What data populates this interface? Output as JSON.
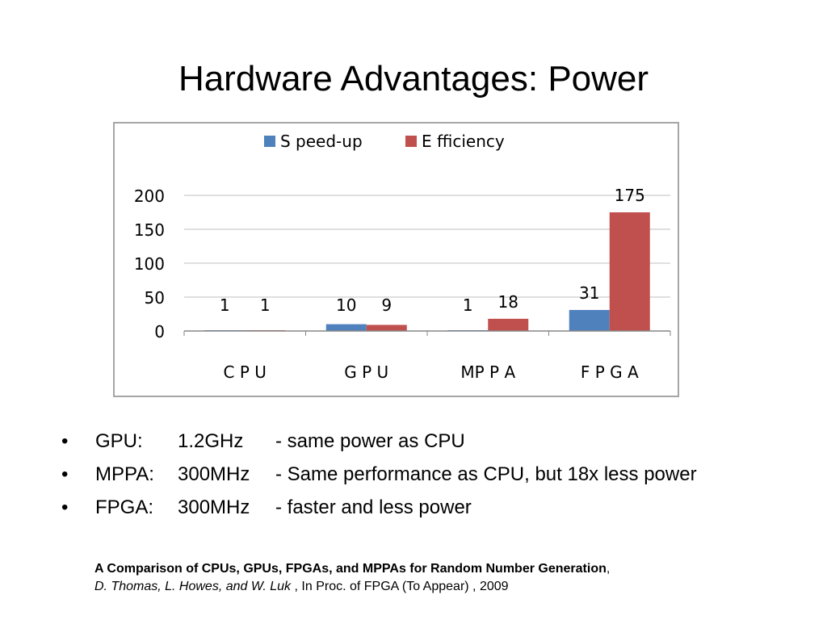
{
  "slide": {
    "title": "Hardware Advantages: Power"
  },
  "chart_data": {
    "type": "bar",
    "categories": [
      "C P U",
      "G P U",
      "MP P A",
      "F P G A"
    ],
    "series": [
      {
        "name": "S peed-up",
        "color": "#4f81bd",
        "values": [
          1,
          10,
          1,
          31
        ]
      },
      {
        "name": "E fficiency",
        "color": "#c0504d",
        "values": [
          1,
          9,
          18,
          175
        ]
      }
    ],
    "data_labels": [
      [
        "1",
        "10",
        "1",
        "31"
      ],
      [
        "1",
        "9",
        "18",
        "175"
      ]
    ],
    "yticks": [
      "0",
      "50",
      "100",
      "150",
      "200"
    ],
    "ylim": [
      0,
      200
    ],
    "grid": true,
    "legend": "top"
  },
  "bullets": [
    {
      "label": "GPU:",
      "speed": "1.2GHz",
      "note": "- same power as CPU"
    },
    {
      "label": "MPPA:",
      "speed": "300MHz",
      "note": "- Same performance as CPU, but 18x less power"
    },
    {
      "label": "FPGA:",
      "speed": "300MHz",
      "note": "- faster and less power"
    }
  ],
  "bullet_char": "•",
  "citation": {
    "title": "A Comparison of CPUs, GPUs, FPGAs, and MPPAs for Random Number Generation",
    "title_suffix": ",",
    "authors": "D. Thomas, L. Howes, and W. Luk",
    "venue": " , In Proc. of FPGA (To Appear) , 2009"
  }
}
